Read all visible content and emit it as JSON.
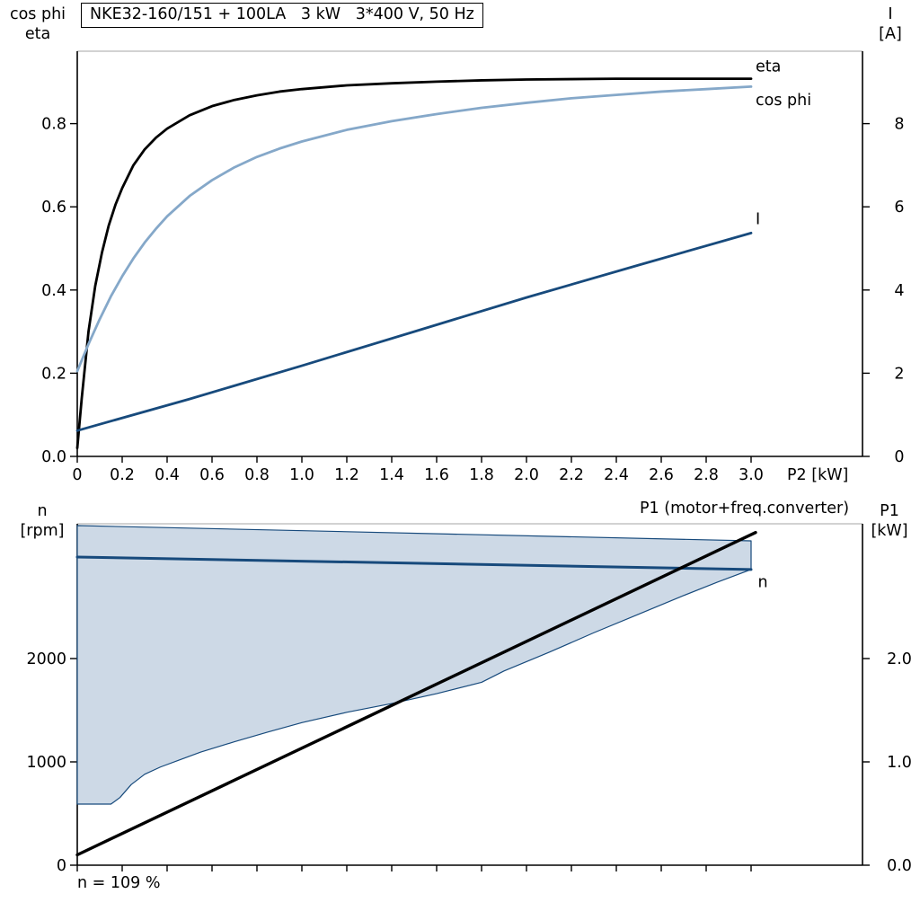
{
  "window": {
    "background": "#ffffff"
  },
  "colors": {
    "black": "#000000",
    "dark_blue": "#174a7c",
    "light_blue": "#85a8c9",
    "fill_blue": "#cdd9e6",
    "axis": "#000000",
    "frame_gray": "#b6b6b6"
  },
  "chart_data": [
    {
      "name": "motor-performance-chart",
      "type": "line",
      "title": "NKE32-160/151 + 100LA   3 kW   3*400 V, 50 Hz",
      "left_axis_title": [
        "cos phi",
        "eta"
      ],
      "right_axis_title": [
        "I",
        "[A]"
      ],
      "xlabel": "P2 [kW]",
      "xlim": [
        0,
        3.5
      ],
      "left_ylim": [
        0,
        0.975
      ],
      "right_ylim": [
        0,
        9.75
      ],
      "grid": false,
      "x_ticks": [
        0,
        0.2,
        0.4,
        0.6,
        0.8,
        1.0,
        1.2,
        1.4,
        1.6,
        1.8,
        2.0,
        2.2,
        2.4,
        2.6,
        2.8,
        3.0
      ],
      "x_tick_labels": [
        "0",
        "0.2",
        "0.4",
        "0.6",
        "0.8",
        "1.0",
        "1.2",
        "1.4",
        "1.6",
        "1.8",
        "2.0",
        "2.2",
        "2.4",
        "2.6",
        "2.8",
        "3.0"
      ],
      "left_ticks": [
        0,
        0.2,
        0.4,
        0.6,
        0.8
      ],
      "left_tick_labels": [
        "0.0",
        "0.2",
        "0.4",
        "0.6",
        "0.8"
      ],
      "right_ticks": [
        0,
        2,
        4,
        6,
        8
      ],
      "right_tick_labels": [
        "0",
        "2",
        "4",
        "6",
        "8"
      ],
      "series": [
        {
          "name": "eta",
          "axis": "left",
          "color_key": "black",
          "width": 2.8,
          "label_pos": [
            3.02,
            0.926
          ],
          "points": [
            [
              0,
              0.02
            ],
            [
              0.02,
              0.14
            ],
            [
              0.05,
              0.3
            ],
            [
              0.08,
              0.41
            ],
            [
              0.11,
              0.49
            ],
            [
              0.14,
              0.555
            ],
            [
              0.17,
              0.605
            ],
            [
              0.2,
              0.645
            ],
            [
              0.25,
              0.7
            ],
            [
              0.3,
              0.738
            ],
            [
              0.35,
              0.766
            ],
            [
              0.4,
              0.788
            ],
            [
              0.5,
              0.82
            ],
            [
              0.6,
              0.842
            ],
            [
              0.7,
              0.857
            ],
            [
              0.8,
              0.868
            ],
            [
              0.9,
              0.877
            ],
            [
              1.0,
              0.883
            ],
            [
              1.2,
              0.892
            ],
            [
              1.4,
              0.897
            ],
            [
              1.6,
              0.901
            ],
            [
              1.8,
              0.904
            ],
            [
              2.0,
              0.906
            ],
            [
              2.2,
              0.907
            ],
            [
              2.4,
              0.908
            ],
            [
              2.6,
              0.908
            ],
            [
              2.8,
              0.908
            ],
            [
              3.0,
              0.908
            ]
          ]
        },
        {
          "name": "cos phi",
          "axis": "left",
          "color_key": "light_blue",
          "width": 2.8,
          "label_pos": [
            3.02,
            0.845
          ],
          "points": [
            [
              0,
              0.205
            ],
            [
              0.05,
              0.27
            ],
            [
              0.1,
              0.33
            ],
            [
              0.15,
              0.385
            ],
            [
              0.2,
              0.433
            ],
            [
              0.25,
              0.476
            ],
            [
              0.3,
              0.514
            ],
            [
              0.35,
              0.547
            ],
            [
              0.4,
              0.577
            ],
            [
              0.5,
              0.626
            ],
            [
              0.6,
              0.664
            ],
            [
              0.7,
              0.695
            ],
            [
              0.8,
              0.72
            ],
            [
              0.9,
              0.74
            ],
            [
              1.0,
              0.757
            ],
            [
              1.2,
              0.785
            ],
            [
              1.4,
              0.806
            ],
            [
              1.6,
              0.823
            ],
            [
              1.8,
              0.838
            ],
            [
              2.0,
              0.85
            ],
            [
              2.2,
              0.861
            ],
            [
              2.4,
              0.869
            ],
            [
              2.6,
              0.877
            ],
            [
              2.8,
              0.883
            ],
            [
              3.0,
              0.889
            ]
          ]
        },
        {
          "name": "I",
          "axis": "right",
          "color_key": "dark_blue",
          "width": 2.8,
          "label_pos": [
            3.02,
            5.58
          ],
          "points": [
            [
              0,
              0.62
            ],
            [
              0.5,
              1.38
            ],
            [
              1.0,
              2.18
            ],
            [
              1.5,
              3.0
            ],
            [
              2.0,
              3.82
            ],
            [
              2.5,
              4.6
            ],
            [
              3.0,
              5.37
            ]
          ]
        }
      ]
    },
    {
      "name": "speed-power-chart",
      "type": "line+area",
      "left_axis_title": [
        "n",
        "[rpm]"
      ],
      "right_axis_title": [
        "P1",
        "[kW]"
      ],
      "top_right_label": "P1 (motor+freq.converter)",
      "bottom_left_label": "n = 109 %",
      "xlim": [
        0,
        3.5
      ],
      "left_ylim": [
        0,
        3300
      ],
      "right_ylim": [
        0,
        3.3
      ],
      "grid": false,
      "x_ticks": [
        0,
        0.2,
        0.4,
        0.6,
        0.8,
        1.0,
        1.2,
        1.4,
        1.6,
        1.8,
        2.0,
        2.2,
        2.4,
        2.6,
        2.8,
        3.0
      ],
      "x_tick_labels": null,
      "left_ticks": [
        0,
        1000,
        2000
      ],
      "left_tick_labels": [
        "0",
        "1000",
        "2000"
      ],
      "right_ticks": [
        0,
        1,
        2
      ],
      "right_tick_labels": [
        "0.0",
        "1.0",
        "2.0"
      ],
      "area": {
        "name": "speed-operating-range",
        "fill_key": "fill_blue",
        "edge_key": "dark_blue",
        "upper": [
          [
            0,
            3287
          ],
          [
            3.0,
            3139
          ]
        ],
        "lower": [
          [
            0,
            591
          ],
          [
            0.15,
            591
          ],
          [
            0.19,
            655
          ],
          [
            0.24,
            780
          ],
          [
            0.3,
            880
          ],
          [
            0.37,
            950
          ],
          [
            0.45,
            1015
          ],
          [
            0.55,
            1095
          ],
          [
            0.7,
            1195
          ],
          [
            0.85,
            1290
          ],
          [
            1.0,
            1380
          ],
          [
            1.2,
            1480
          ],
          [
            1.4,
            1565
          ],
          [
            1.6,
            1660
          ],
          [
            1.8,
            1770
          ],
          [
            1.9,
            1880
          ],
          [
            2.1,
            2060
          ],
          [
            2.3,
            2250
          ],
          [
            2.5,
            2430
          ],
          [
            2.7,
            2610
          ],
          [
            2.85,
            2740
          ],
          [
            3.0,
            2862
          ]
        ]
      },
      "series": [
        {
          "name": "n",
          "axis": "left",
          "color_key": "dark_blue",
          "width": 3,
          "label_pos": [
            3.03,
            2690
          ],
          "points": [
            [
              0,
              2983
            ],
            [
              3.0,
              2862
            ]
          ]
        },
        {
          "name": "P1",
          "axis": "right",
          "color_key": "black",
          "width": 3.4,
          "label_pos": null,
          "points": [
            [
              0,
              0.1
            ],
            [
              3.02,
              3.22
            ]
          ]
        }
      ]
    }
  ]
}
